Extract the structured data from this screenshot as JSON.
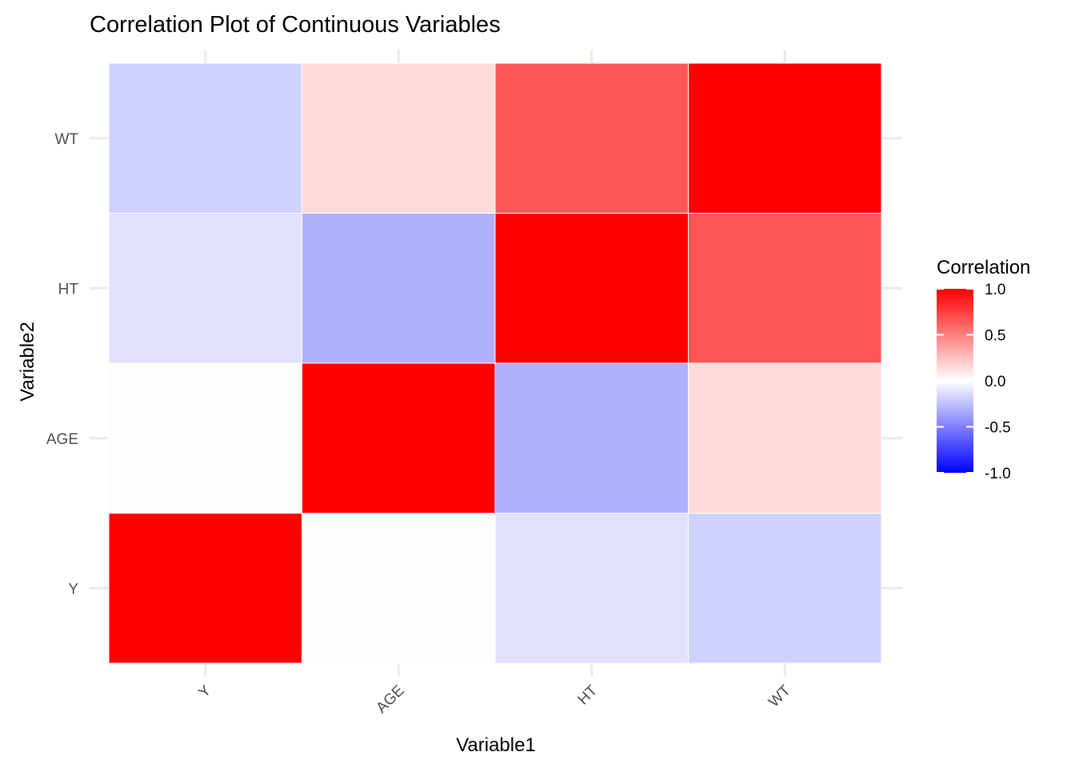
{
  "chart_data": {
    "type": "heatmap",
    "title": "Correlation Plot of Continuous Variables",
    "xlabel": "Variable1",
    "ylabel": "Variable2",
    "x_categories": [
      "Y",
      "AGE",
      "HT",
      "WT"
    ],
    "y_categories": [
      "Y",
      "AGE",
      "HT",
      "WT"
    ],
    "values": [
      [
        1.0,
        0.01,
        -0.12,
        -0.18
      ],
      [
        0.01,
        1.0,
        -0.31,
        0.14
      ],
      [
        -0.12,
        -0.31,
        1.0,
        0.66
      ],
      [
        -0.18,
        0.14,
        0.66,
        1.0
      ]
    ],
    "legend": {
      "title": "Correlation",
      "limits": [
        -1,
        1
      ],
      "breaks": [
        "1.0",
        "0.5",
        "0.0",
        "-0.5",
        "-1.0"
      ],
      "colors": {
        "low": "#0000ff",
        "mid": "#ffffff",
        "high": "#ff0000"
      },
      "placement": "right"
    },
    "grid": true
  }
}
